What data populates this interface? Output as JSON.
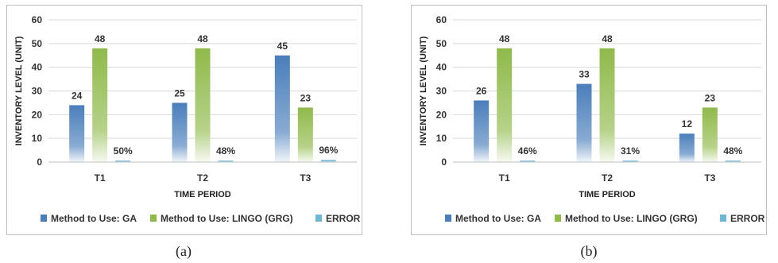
{
  "chart_data": [
    {
      "type": "bar",
      "caption": "(a)",
      "categories": [
        "T1",
        "T2",
        "T3"
      ],
      "series": [
        {
          "name": "Method to Use: GA",
          "values": [
            24,
            25,
            45
          ],
          "color": "#4a7ebb"
        },
        {
          "name": "Method to Use: LINGO (GRG)",
          "values": [
            48,
            48,
            23
          ],
          "color": "#8fba4a"
        },
        {
          "name": "ERROR",
          "values": [
            0.5,
            0.48,
            0.96
          ],
          "labels": [
            "50%",
            "48%",
            "96%"
          ],
          "color": "#6fb7d6"
        }
      ],
      "xlabel": "TIME PERIOD",
      "ylabel": "INVENTORY LEVEL (UNIT)",
      "ylim": [
        0,
        60
      ],
      "yticks": [
        0,
        10,
        20,
        30,
        40,
        50,
        60
      ],
      "grid": true,
      "legend": "bottom"
    },
    {
      "type": "bar",
      "caption": "(b)",
      "categories": [
        "T1",
        "T2",
        "T3"
      ],
      "series": [
        {
          "name": "Method to Use: GA",
          "values": [
            26,
            33,
            12
          ],
          "color": "#4a7ebb"
        },
        {
          "name": "Method to Use: LINGO (GRG)",
          "values": [
            48,
            48,
            23
          ],
          "color": "#8fba4a"
        },
        {
          "name": "ERROR",
          "values": [
            0.46,
            0.31,
            0.48
          ],
          "labels": [
            "46%",
            "31%",
            "48%"
          ],
          "color": "#6fb7d6"
        }
      ],
      "xlabel": "TIME PERIOD",
      "ylabel": "INVENTORY LEVEL (UNIT)",
      "ylim": [
        0,
        60
      ],
      "yticks": [
        0,
        10,
        20,
        30,
        40,
        50,
        60
      ],
      "grid": true,
      "legend": "bottom"
    }
  ]
}
